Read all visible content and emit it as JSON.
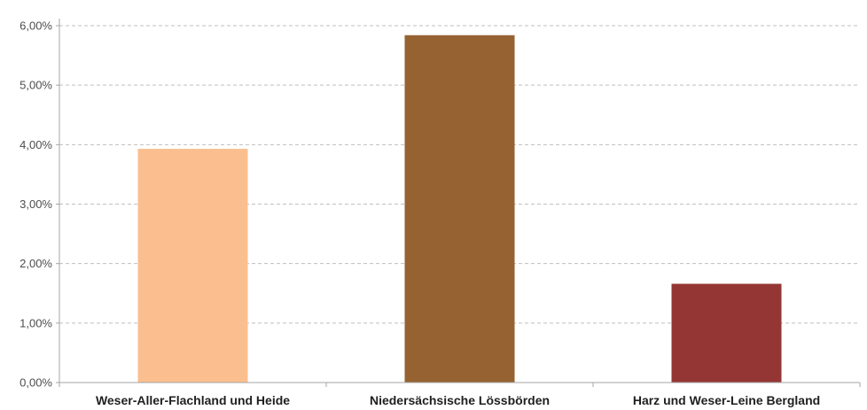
{
  "chart_data": {
    "type": "bar",
    "title": "",
    "xlabel": "",
    "ylabel": "",
    "categories": [
      "Weser-Aller-Flachland und Heide",
      "Niedersächsische Lössbörden",
      "Harz und Weser-Leine Bergland"
    ],
    "values": [
      3.93,
      5.84,
      1.66
    ],
    "colors": [
      "#fbbf8f",
      "#966232",
      "#943634"
    ],
    "ylim": [
      0,
      6
    ],
    "yticks": [
      0,
      1,
      2,
      3,
      4,
      5,
      6
    ],
    "ytick_labels": [
      "0,00%",
      "1,00%",
      "2,00%",
      "3,00%",
      "4,00%",
      "5,00%",
      "6,00%"
    ],
    "grid": true,
    "legend": "none"
  }
}
